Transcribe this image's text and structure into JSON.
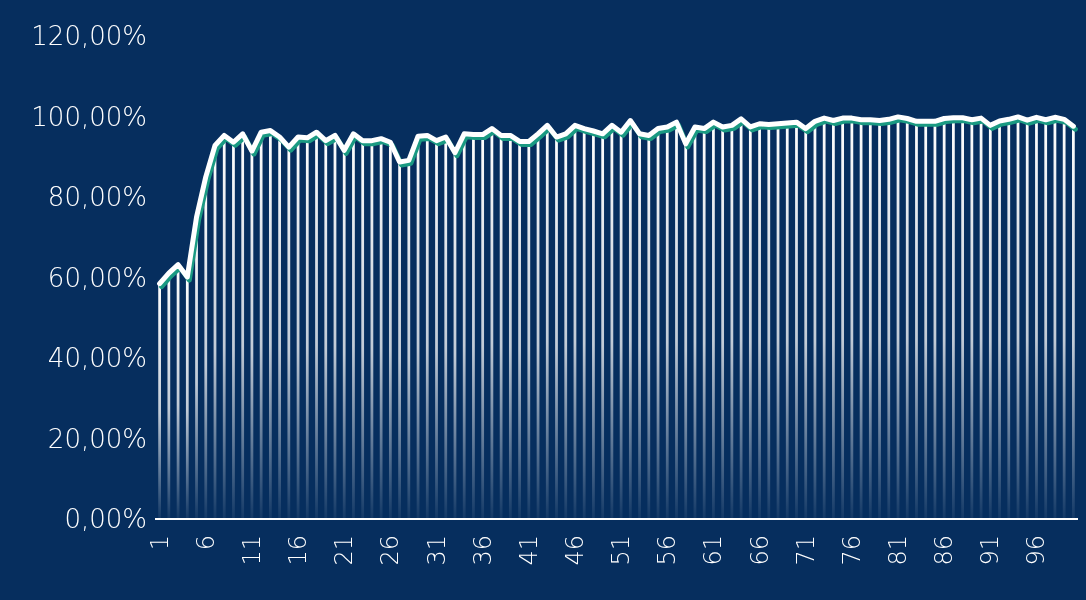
{
  "chart_data": {
    "type": "bar",
    "categories": [
      "1",
      null,
      null,
      null,
      null,
      "6",
      null,
      null,
      null,
      null,
      "11",
      null,
      null,
      null,
      null,
      "16",
      null,
      null,
      null,
      null,
      "21",
      null,
      null,
      null,
      null,
      "26",
      null,
      null,
      null,
      null,
      "31",
      null,
      null,
      null,
      null,
      "36",
      null,
      null,
      null,
      null,
      "41",
      null,
      null,
      null,
      null,
      "46",
      null,
      null,
      null,
      null,
      "51",
      null,
      null,
      null,
      null,
      "56",
      null,
      null,
      null,
      null,
      "61",
      null,
      null,
      null,
      null,
      "66",
      null,
      null,
      null,
      null,
      "71",
      null,
      null,
      null,
      null,
      "76",
      null,
      null,
      null,
      null,
      "81",
      null,
      null,
      null,
      null,
      "86",
      null,
      null,
      null,
      null,
      "91",
      null,
      null,
      null,
      null,
      "96",
      null,
      null,
      null,
      null
    ],
    "series": [
      {
        "color": "#ffffff",
        "values": [
          58.5,
          61.1,
          63.2,
          60.1,
          75,
          85,
          92.8,
          95.3,
          93.6,
          95.7,
          91.4,
          96.1,
          96.5,
          94.9,
          92.4,
          94.9,
          94.7,
          96.1,
          94.0,
          95.3,
          91.6,
          95.7,
          94.0,
          94.0,
          94.5,
          93.6,
          88.7,
          89.1,
          95.1,
          95.3,
          94.0,
          94.9,
          91.0,
          95.7,
          95.5,
          95.5,
          97.0,
          95.3,
          95.3,
          93.8,
          93.8,
          95.7,
          97.8,
          94.9,
          95.7,
          97.8,
          97.0,
          96.4,
          95.7,
          97.8,
          96.1,
          99.0,
          95.7,
          95.3,
          97.0,
          97.4,
          98.6,
          93.2,
          97.4,
          97.0,
          98.6,
          97.4,
          97.8,
          99.4,
          97.4,
          98.2,
          98.0,
          98.2,
          98.4,
          98.6,
          97.0,
          98.8,
          99.6,
          99.0,
          99.6,
          99.6,
          99.2,
          99.2,
          99.0,
          99.3,
          99.9,
          99.5,
          98.8,
          98.8,
          98.8,
          99.5,
          99.7,
          99.7,
          99.2,
          99.6,
          97.8,
          98.9,
          99.3,
          99.9,
          99.1,
          99.8,
          99.2,
          99.8,
          99.3,
          97.6
        ]
      },
      {
        "type": "line",
        "color": "#ffffff",
        "values": [
          58.5,
          61.1,
          63.2,
          60.1,
          75,
          85,
          92.8,
          95.3,
          93.6,
          95.7,
          91.4,
          96.1,
          96.5,
          94.9,
          92.4,
          94.9,
          94.7,
          96.1,
          94.0,
          95.3,
          91.6,
          95.7,
          94.0,
          94.0,
          94.5,
          93.6,
          88.7,
          89.1,
          95.1,
          95.3,
          94.0,
          94.9,
          91.0,
          95.7,
          95.5,
          95.5,
          97.0,
          95.3,
          95.3,
          93.8,
          93.8,
          95.7,
          97.8,
          94.9,
          95.7,
          97.8,
          97.0,
          96.4,
          95.7,
          97.8,
          96.1,
          99.0,
          95.7,
          95.3,
          97.0,
          97.4,
          98.6,
          93.2,
          97.4,
          97.0,
          98.6,
          97.4,
          97.8,
          99.4,
          97.4,
          98.2,
          98.0,
          98.2,
          98.4,
          98.6,
          97.0,
          98.8,
          99.6,
          99.0,
          99.6,
          99.6,
          99.2,
          99.2,
          99.0,
          99.3,
          99.9,
          99.5,
          98.8,
          98.8,
          98.8,
          99.5,
          99.7,
          99.7,
          99.2,
          99.6,
          97.8,
          98.9,
          99.3,
          99.9,
          99.1,
          99.8,
          99.2,
          99.8,
          99.3,
          97.6
        ]
      }
    ],
    "ylim": [
      0,
      120
    ],
    "yticks": [
      {
        "value": 0,
        "label": "0,00%"
      },
      {
        "value": 20,
        "label": "20,00%"
      },
      {
        "value": 40,
        "label": "40,00%"
      },
      {
        "value": 60,
        "label": "60,00%"
      },
      {
        "value": 80,
        "label": "80,00%"
      },
      {
        "value": 100,
        "label": "100,00%"
      },
      {
        "value": 120,
        "label": "120,00%"
      }
    ],
    "grid": false,
    "legend": false
  }
}
